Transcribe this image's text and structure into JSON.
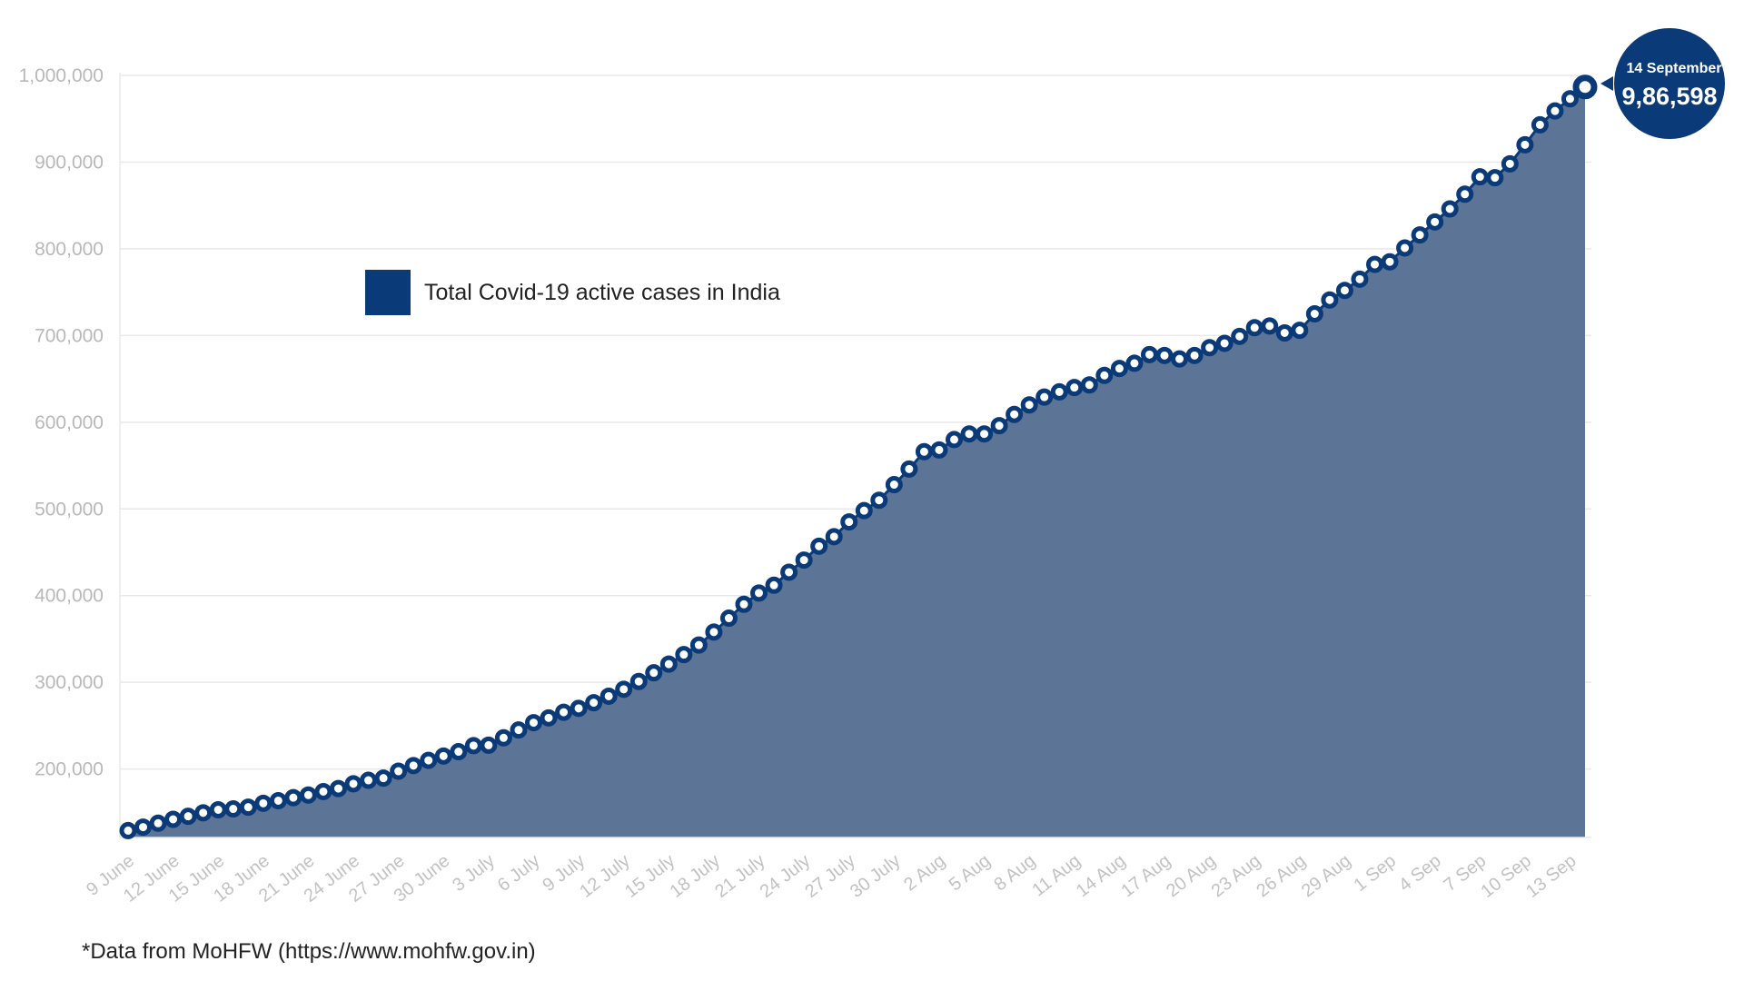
{
  "colors": {
    "line": "#0b3a78",
    "area": "#5c7495",
    "grid": "#e8e8e8",
    "legend_swatch": "#0b3a78",
    "callout_bg": "#0b3a78",
    "callout_text": "#ffffff"
  },
  "legend": {
    "label": "Total Covid-19 active cases in India",
    "placement": "top-left"
  },
  "callout": {
    "date": "14 September",
    "value": "9,86,598"
  },
  "source_note": "*Data from MoHFW (https://www.mohfw.gov.in)",
  "chart_data": {
    "type": "area",
    "grid": true,
    "ylim": [
      120000,
      1000000
    ],
    "y_ticks": [
      200000,
      300000,
      400000,
      500000,
      600000,
      700000,
      800000,
      900000,
      1000000
    ],
    "y_tick_labels": [
      "200,000",
      "300,000",
      "400,000",
      "500,000",
      "600,000",
      "700,000",
      "800,000",
      "900,000",
      "1,000,000"
    ],
    "x_tick_labels": [
      "9 June",
      "12 June",
      "15 June",
      "18 June",
      "21 June",
      "24 June",
      "27 June",
      "30 June",
      "3 July",
      "6 July",
      "9 July",
      "12 July",
      "15 July",
      "18 July",
      "21 July",
      "24 July",
      "27 July",
      "30 July",
      "2 Aug",
      "5 Aug",
      "8 Aug",
      "11 Aug",
      "14 Aug",
      "17 Aug",
      "20 Aug",
      "23 Aug",
      "26 Aug",
      "29 Aug",
      "1 Sep",
      "4 Sep",
      "7 Sep",
      "10 Sep",
      "13 Sep"
    ],
    "series": [
      {
        "name": "Total Covid-19 active cases in India",
        "values": [
          129000,
          133000,
          137500,
          142000,
          145500,
          149500,
          153000,
          154000,
          156000,
          160500,
          163500,
          167000,
          170000,
          174000,
          177500,
          183000,
          187000,
          189500,
          197500,
          204000,
          210000,
          215000,
          220000,
          227000,
          227500,
          236000,
          245000,
          253500,
          259000,
          265500,
          270000,
          276500,
          284000,
          292000,
          301000,
          311000,
          321000,
          332000,
          343000,
          358000,
          374000,
          390000,
          403000,
          412000,
          427000,
          441000,
          457000,
          468000,
          485000,
          498000,
          510000,
          528000,
          546000,
          566000,
          568000,
          580000,
          586500,
          586500,
          596000,
          609000,
          620000,
          629000,
          635000,
          640000,
          643000,
          654000,
          662000,
          668000,
          678000,
          677000,
          673000,
          677000,
          686000,
          691000,
          699000,
          709000,
          711000,
          703000,
          706000,
          725000,
          741000,
          752000,
          765000,
          782000,
          785000,
          801000,
          816000,
          831000,
          846000,
          863000,
          883000,
          882000,
          898000,
          920000,
          943000,
          959000,
          973000,
          986598
        ]
      }
    ]
  }
}
